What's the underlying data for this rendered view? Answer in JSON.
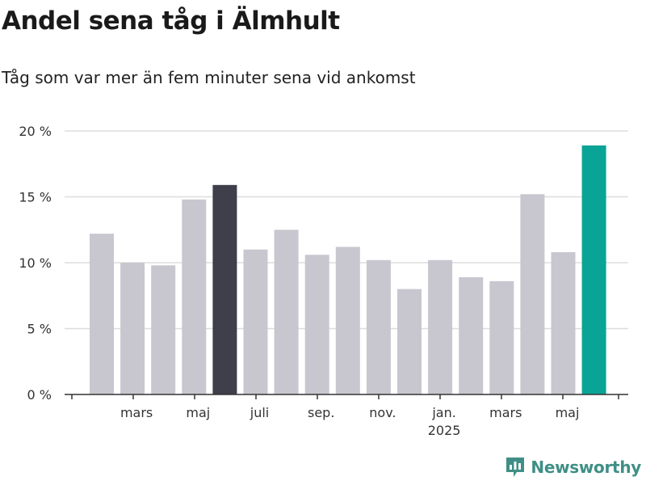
{
  "header": {
    "title": "Andel sena tåg i Älmhult",
    "subtitle": "Tåg som var mer än fem minuter sena vid ankomst"
  },
  "brand": {
    "name": "Newsworthy",
    "icon": "bar-chart-logo-icon",
    "color": "#3f8f86"
  },
  "chart_data": {
    "type": "bar",
    "categories": [
      "2024-02",
      "2024-03",
      "2024-04",
      "2024-05",
      "2024-06",
      "2024-07",
      "2024-08",
      "2024-09",
      "2024-10",
      "2024-11",
      "2024-12",
      "2025-01",
      "2025-02",
      "2025-03",
      "2025-04",
      "2025-05",
      "2025-06"
    ],
    "values": [
      12.2,
      10.0,
      9.8,
      14.8,
      15.9,
      11.0,
      12.5,
      10.6,
      11.2,
      10.2,
      8.0,
      10.2,
      8.9,
      8.6,
      15.2,
      10.8,
      18.9
    ],
    "bar_colors": [
      "#c8c7cf",
      "#c8c7cf",
      "#c8c7cf",
      "#c8c7cf",
      "#3f3e4b",
      "#c8c7cf",
      "#c8c7cf",
      "#c8c7cf",
      "#c8c7cf",
      "#c8c7cf",
      "#c8c7cf",
      "#c8c7cf",
      "#c8c7cf",
      "#c8c7cf",
      "#c8c7cf",
      "#c8c7cf",
      "#0aa496"
    ],
    "ylim": [
      0,
      20
    ],
    "yticks": [
      {
        "value": 0,
        "label": "0 %"
      },
      {
        "value": 5,
        "label": "5 %"
      },
      {
        "value": 10,
        "label": "10 %"
      },
      {
        "value": 15,
        "label": "15 %"
      },
      {
        "value": 20,
        "label": "20 %"
      }
    ],
    "xtick_labels": [
      {
        "index": 1,
        "label": "mars"
      },
      {
        "index": 3,
        "label": "maj"
      },
      {
        "index": 5,
        "label": "juli"
      },
      {
        "index": 7,
        "label": "sep."
      },
      {
        "index": 9,
        "label": "nov."
      },
      {
        "index": 11,
        "label": "jan.",
        "sublabel": "2025"
      },
      {
        "index": 13,
        "label": "mars"
      },
      {
        "index": 15,
        "label": "maj"
      }
    ],
    "grid": true
  }
}
